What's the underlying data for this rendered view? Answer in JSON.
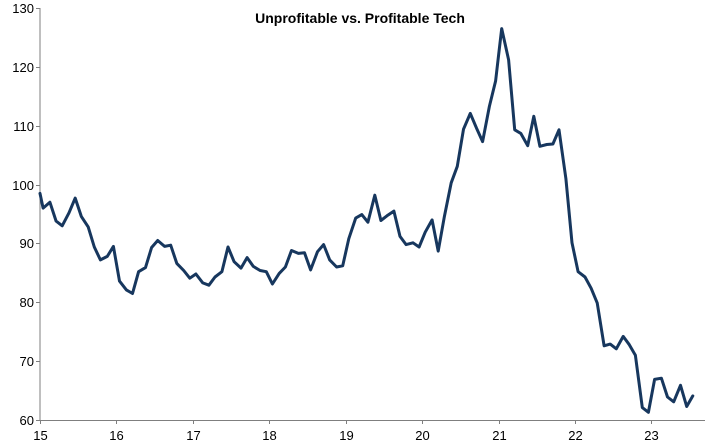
{
  "chart_data": {
    "type": "line",
    "title": "Unprofitable vs. Profitable Tech",
    "xlabel": "",
    "ylabel": "",
    "xlim": [
      15,
      23.7
    ],
    "ylim": [
      60,
      130
    ],
    "x_ticks": [
      15,
      16,
      17,
      18,
      19,
      20,
      21,
      22,
      23
    ],
    "x_tick_labels": [
      "15",
      "16",
      "17",
      "18",
      "19",
      "20",
      "21",
      "22",
      "23"
    ],
    "y_ticks": [
      60,
      70,
      80,
      90,
      100,
      110,
      120,
      130
    ],
    "y_tick_labels": [
      "60",
      "70",
      "80",
      "90",
      "100",
      "110",
      "120",
      "130"
    ],
    "grid": false,
    "legend": "none",
    "line_color": "#17375e",
    "series": [
      {
        "x": [
          15.0,
          15.04,
          15.13,
          15.21,
          15.29,
          15.38,
          15.46,
          15.54,
          15.63,
          15.71,
          15.79,
          15.88,
          15.96,
          16.04,
          16.13,
          16.21,
          16.29,
          16.38,
          16.46,
          16.54,
          16.63,
          16.71,
          16.79,
          16.88,
          16.96,
          17.04,
          17.13,
          17.21,
          17.29,
          17.38,
          17.46,
          17.54,
          17.63,
          17.71,
          17.79,
          17.88,
          17.96,
          18.04,
          18.13,
          18.21,
          18.29,
          18.38,
          18.46,
          18.54,
          18.63,
          18.71,
          18.79,
          18.88,
          18.96,
          19.04,
          19.13,
          19.21,
          19.29,
          19.38,
          19.46,
          19.54,
          19.63,
          19.71,
          19.79,
          19.88,
          19.96,
          20.04,
          20.13,
          20.21,
          20.29,
          20.38,
          20.46,
          20.54,
          20.63,
          20.71,
          20.79,
          20.88,
          20.96,
          21.0,
          21.04,
          21.13,
          21.21,
          21.29,
          21.38,
          21.46,
          21.54,
          21.63,
          21.71,
          21.79,
          21.88,
          21.96,
          22.04,
          22.13,
          22.21,
          22.29,
          22.38,
          22.46,
          22.54,
          22.63,
          22.71,
          22.79,
          22.88,
          22.96,
          23.04,
          23.13,
          23.21,
          23.29,
          23.38,
          23.46,
          23.54
        ],
        "y": [
          98.5,
          96.0,
          97.0,
          93.8,
          93.0,
          95.2,
          97.7,
          94.6,
          92.8,
          89.4,
          87.2,
          87.8,
          89.5,
          83.6,
          82.1,
          81.5,
          85.2,
          85.9,
          89.3,
          90.5,
          89.5,
          89.7,
          86.6,
          85.4,
          84.1,
          84.8,
          83.3,
          82.9,
          84.3,
          85.2,
          89.4,
          86.9,
          85.8,
          87.6,
          86.1,
          85.4,
          85.2,
          83.1,
          84.9,
          86.0,
          88.8,
          88.3,
          88.4,
          85.5,
          88.6,
          89.8,
          87.2,
          86.0,
          86.2,
          90.8,
          94.3,
          94.9,
          93.6,
          98.2,
          93.9,
          94.7,
          95.5,
          91.2,
          89.8,
          90.1,
          89.4,
          91.9,
          94.0,
          88.7,
          94.6,
          100.3,
          103.1,
          109.4,
          112.1,
          109.6,
          107.3,
          113.3,
          117.6,
          122.0,
          126.5,
          121.2,
          109.3,
          108.7,
          106.6,
          111.6,
          106.5,
          106.8,
          106.9,
          109.3,
          101.0,
          90.1,
          85.2,
          84.3,
          82.4,
          79.9,
          72.6,
          72.9,
          72.1,
          74.2,
          72.8,
          71.0,
          62.1,
          61.3,
          66.9,
          67.1,
          63.9,
          63.1,
          65.9,
          62.3,
          64.1
        ]
      }
    ]
  }
}
